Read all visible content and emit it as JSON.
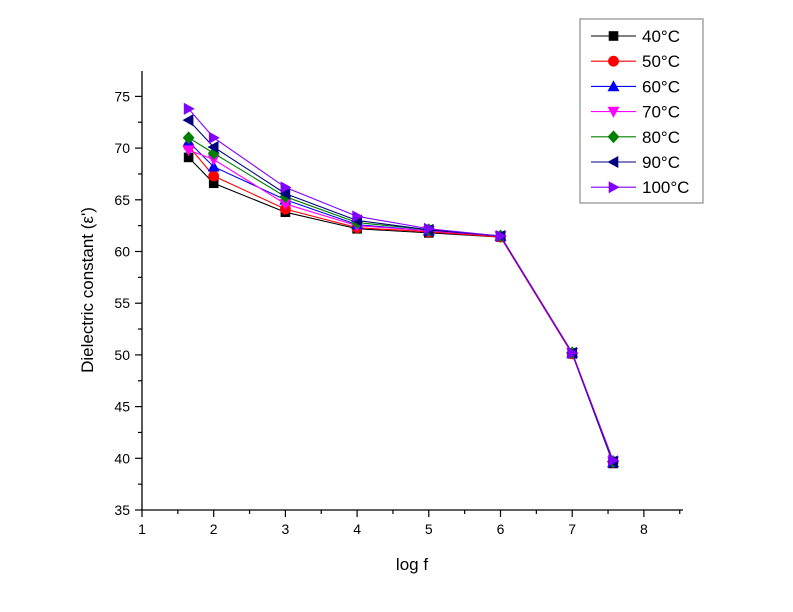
{
  "chart_data": {
    "type": "line",
    "title": "",
    "xlabel": "log f",
    "ylabel": "Dielectric constant (ε')",
    "xlim": [
      1,
      8.5
    ],
    "ylim": [
      35,
      76.3
    ],
    "xticks": [
      "1",
      "2",
      "3",
      "4",
      "5",
      "6",
      "7",
      "8"
    ],
    "yticks": [
      "35",
      "40",
      "45",
      "50",
      "55",
      "60",
      "65",
      "70",
      "75"
    ],
    "grid": false,
    "legend_position": "top-right",
    "x": [
      1.65,
      2.0,
      3.0,
      4.0,
      5.0,
      6.0,
      7.0,
      7.57
    ],
    "series": [
      {
        "name": "40°C",
        "color": "#000000",
        "marker": "square",
        "values": [
          69.1,
          66.6,
          63.8,
          62.2,
          61.8,
          61.4,
          50.1,
          39.5
        ]
      },
      {
        "name": "50°C",
        "color": "#ff0000",
        "marker": "circle",
        "values": [
          70.2,
          67.3,
          64.1,
          62.3,
          61.9,
          61.4,
          50.1,
          39.6
        ]
      },
      {
        "name": "60°C",
        "color": "#0000ff",
        "marker": "triangle-up",
        "values": [
          70.6,
          68.2,
          65.0,
          62.6,
          62.0,
          61.5,
          50.2,
          39.6
        ]
      },
      {
        "name": "70°C",
        "color": "#ff00ff",
        "marker": "triangle-down",
        "values": [
          69.8,
          68.9,
          64.6,
          62.5,
          62.0,
          61.5,
          50.2,
          39.7
        ]
      },
      {
        "name": "80°C",
        "color": "#008000",
        "marker": "diamond",
        "values": [
          71.0,
          69.5,
          65.3,
          62.8,
          62.1,
          61.5,
          50.2,
          39.7
        ]
      },
      {
        "name": "90°C",
        "color": "#000080",
        "marker": "triangle-left",
        "values": [
          72.7,
          70.1,
          65.6,
          63.0,
          62.1,
          61.5,
          50.2,
          39.7
        ]
      },
      {
        "name": "100°C",
        "color": "#8000ff",
        "marker": "triangle-right",
        "values": [
          73.8,
          71.0,
          66.2,
          63.4,
          62.2,
          61.5,
          50.2,
          39.8
        ]
      }
    ]
  }
}
